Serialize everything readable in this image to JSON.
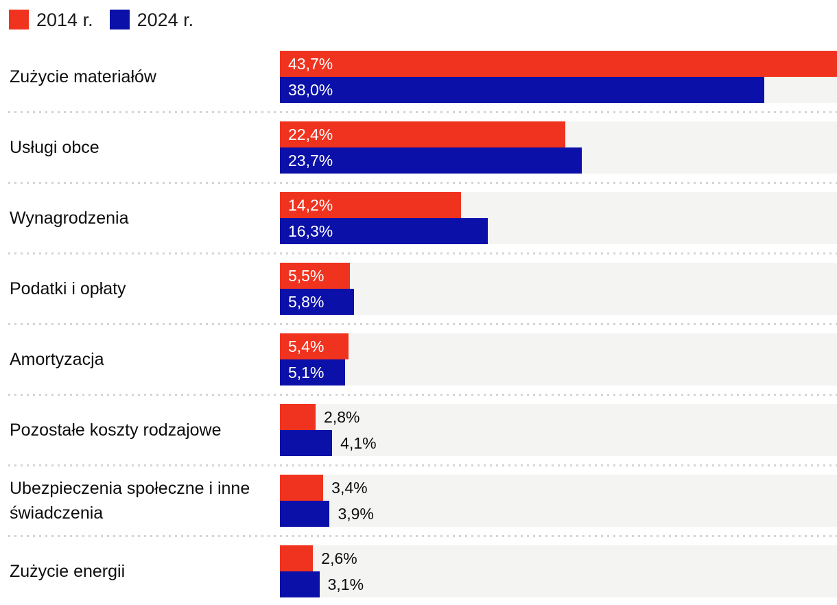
{
  "legend": {
    "items": [
      {
        "label": "2014 r.",
        "color": "#f0331f"
      },
      {
        "label": "2024 r.",
        "color": "#0a10a8"
      }
    ]
  },
  "chart_data": {
    "type": "bar",
    "orientation": "horizontal",
    "categories": [
      "Zużycie materiałów",
      "Usługi obce",
      "Wynagrodzenia",
      "Podatki i opłaty",
      "Amortyzacja",
      "Pozostałe koszty rodzajowe",
      "Ubezpieczenia społeczne i inne świadczenia",
      "Zużycie energii"
    ],
    "series": [
      {
        "name": "2014 r.",
        "color": "#f0331f",
        "values": [
          43.7,
          22.4,
          14.2,
          5.5,
          5.4,
          2.8,
          3.4,
          2.6
        ],
        "labels": [
          "43,7%",
          "22,4%",
          "14,2%",
          "5,5%",
          "5,4%",
          "2,8%",
          "3,4%",
          "2,6%"
        ]
      },
      {
        "name": "2024 r.",
        "color": "#0a10a8",
        "values": [
          38.0,
          23.7,
          16.3,
          5.8,
          5.1,
          4.1,
          3.9,
          3.1
        ],
        "labels": [
          "38,0%",
          "23,7%",
          "16,3%",
          "5,8%",
          "5,1%",
          "4,1%",
          "3,9%",
          "3,1%"
        ]
      }
    ],
    "value_label_inside": [
      true,
      true,
      true,
      true,
      true,
      false,
      false,
      false
    ],
    "xmax": 43.7,
    "xlabel": "",
    "ylabel": "",
    "title": "",
    "grid": false,
    "legend_position": "top-left",
    "track_color": "#f4f4f3",
    "divider_color": "#d4d4d4"
  }
}
